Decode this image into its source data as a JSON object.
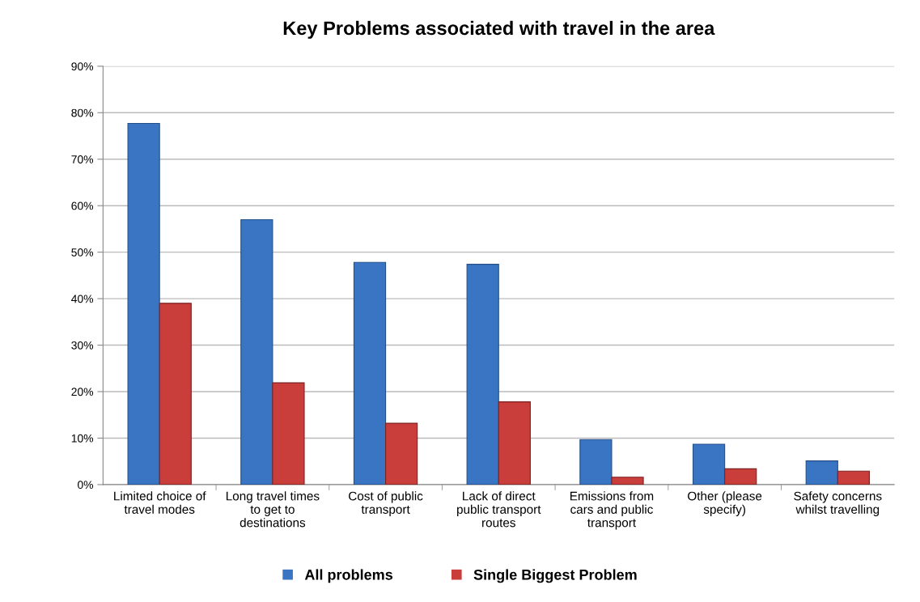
{
  "chart_data": {
    "type": "bar",
    "title": "Key Problems associated with travel in the area",
    "categories": [
      "Limited choice of\ntravel modes",
      "Long travel times\nto get to\ndestinations",
      "Cost of public\ntransport",
      "Lack of direct\npublic transport\nroutes",
      "Emissions from\ncars and public\ntransport",
      "Other (please\nspecify)",
      "Safety concerns\nwhilst travelling"
    ],
    "series": [
      {
        "name": "All problems",
        "color": "#3a75c4",
        "values": [
          77.7,
          57.0,
          47.8,
          47.4,
          9.7,
          8.7,
          5.1
        ]
      },
      {
        "name": "Single Biggest Problem",
        "color": "#c93d3b",
        "values": [
          39.0,
          21.9,
          13.2,
          17.8,
          1.6,
          3.4,
          2.9
        ]
      }
    ],
    "ylim": [
      0,
      90
    ],
    "yticks": [
      {
        "value": 0,
        "label": "0%"
      },
      {
        "value": 10,
        "label": "10%"
      },
      {
        "value": 20,
        "label": "20%"
      },
      {
        "value": 30,
        "label": "30%"
      },
      {
        "value": 40,
        "label": "40%"
      },
      {
        "value": 50,
        "label": "50%"
      },
      {
        "value": 60,
        "label": "60%"
      },
      {
        "value": 70,
        "label": "70%"
      },
      {
        "value": 80,
        "label": "80%"
      },
      {
        "value": 90,
        "label": "90%"
      }
    ],
    "grid": "y",
    "legend": "bottom"
  }
}
